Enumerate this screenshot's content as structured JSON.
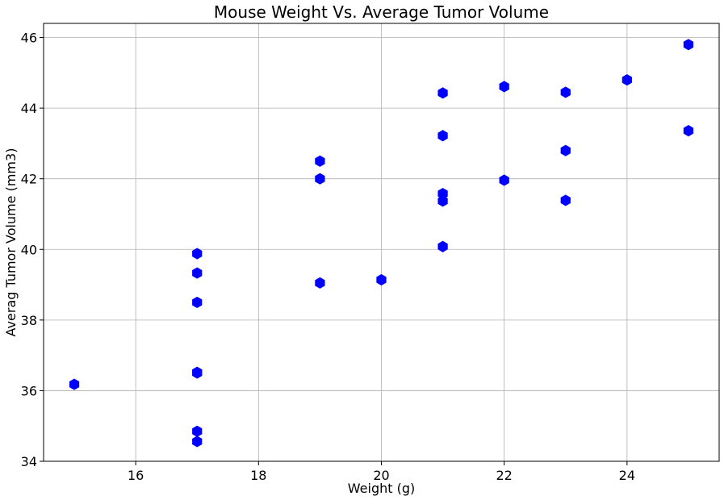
{
  "chart_data": {
    "type": "scatter",
    "title": "Mouse Weight Vs. Average Tumor Volume",
    "xlabel": "Weight (g)",
    "ylabel": "Averag Tumor Volume (mm3)",
    "xlim": [
      14.5,
      25.5
    ],
    "ylim": [
      34,
      46.4
    ],
    "xticks": [
      16,
      18,
      20,
      22,
      24
    ],
    "yticks": [
      34,
      36,
      38,
      40,
      42,
      44,
      46
    ],
    "grid": true,
    "marker": "hexagon",
    "color": "#0000ff",
    "series": [
      {
        "points": [
          {
            "x": 15,
            "y": 36.18
          },
          {
            "x": 17,
            "y": 39.88
          },
          {
            "x": 17,
            "y": 39.33
          },
          {
            "x": 17,
            "y": 38.5
          },
          {
            "x": 17,
            "y": 36.52
          },
          {
            "x": 17,
            "y": 36.5
          },
          {
            "x": 17,
            "y": 34.85
          },
          {
            "x": 17,
            "y": 34.56
          },
          {
            "x": 19,
            "y": 42.5
          },
          {
            "x": 19,
            "y": 42.0
          },
          {
            "x": 19,
            "y": 39.05
          },
          {
            "x": 20,
            "y": 39.14
          },
          {
            "x": 21,
            "y": 44.43
          },
          {
            "x": 21,
            "y": 43.22
          },
          {
            "x": 21,
            "y": 41.58
          },
          {
            "x": 21,
            "y": 41.37
          },
          {
            "x": 21,
            "y": 40.08
          },
          {
            "x": 22,
            "y": 44.61
          },
          {
            "x": 22,
            "y": 41.96
          },
          {
            "x": 23,
            "y": 44.45
          },
          {
            "x": 23,
            "y": 42.8
          },
          {
            "x": 23,
            "y": 41.39
          },
          {
            "x": 24,
            "y": 44.8
          },
          {
            "x": 25,
            "y": 45.8
          },
          {
            "x": 25,
            "y": 43.36
          }
        ]
      }
    ]
  }
}
